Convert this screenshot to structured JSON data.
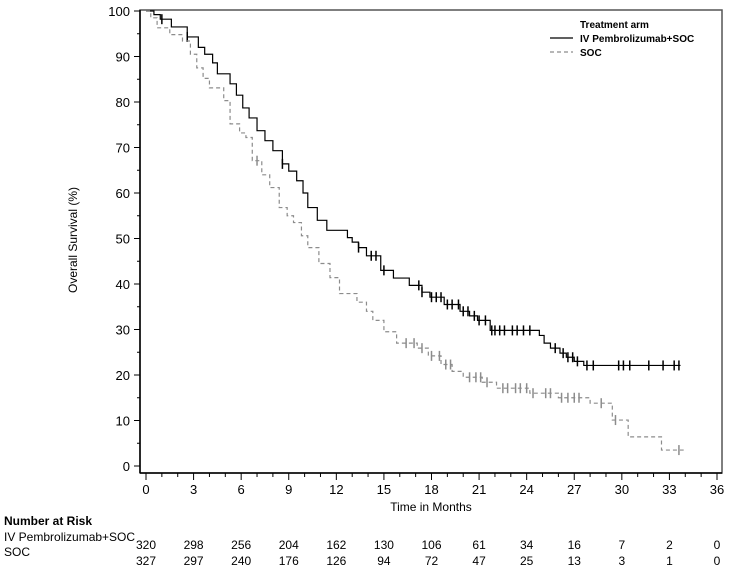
{
  "chart_data": {
    "type": "line",
    "subtype": "kaplan-meier",
    "xlabel": "Time in Months",
    "ylabel": "Overall Survival (%)",
    "xlim": [
      0,
      36
    ],
    "ylim": [
      0,
      100
    ],
    "xticks": [
      0,
      3,
      6,
      9,
      12,
      15,
      18,
      21,
      24,
      27,
      30,
      33,
      36
    ],
    "yticks": [
      0,
      10,
      20,
      30,
      40,
      50,
      60,
      70,
      80,
      90,
      100
    ],
    "grid": false,
    "legend": {
      "title": "Treatment arm",
      "placement": "top-right"
    },
    "series": [
      {
        "name": "IV Pembrolizumab+SOC",
        "color": "#000000",
        "style": "solid",
        "steps": [
          [
            0.5,
            99.2
          ],
          [
            0.9,
            98.2
          ],
          [
            1.6,
            96.5
          ],
          [
            2.6,
            94.3
          ],
          [
            3.3,
            92
          ],
          [
            3.7,
            90.5
          ],
          [
            4.2,
            88.6
          ],
          [
            4.5,
            86.2
          ],
          [
            5.3,
            84
          ],
          [
            5.7,
            81.5
          ],
          [
            6.1,
            78.7
          ],
          [
            6.5,
            76.5
          ],
          [
            7.0,
            73.7
          ],
          [
            7.5,
            71.5
          ],
          [
            8.0,
            69.3
          ],
          [
            8.6,
            66.4
          ],
          [
            9.0,
            64.8
          ],
          [
            9.5,
            62.7
          ],
          [
            9.9,
            60
          ],
          [
            10.2,
            56.8
          ],
          [
            10.8,
            54
          ],
          [
            11.4,
            51.8
          ],
          [
            12.7,
            50.2
          ],
          [
            13.0,
            49.2
          ],
          [
            13.4,
            48.0
          ],
          [
            13.9,
            46.2
          ],
          [
            14.8,
            43.0
          ],
          [
            15.6,
            41.3
          ],
          [
            16.6,
            39.7
          ],
          [
            17.4,
            38.2
          ],
          [
            17.9,
            37.1
          ],
          [
            18.8,
            35.5
          ],
          [
            19.8,
            34.0
          ],
          [
            20.4,
            33.0
          ],
          [
            20.9,
            32.0
          ],
          [
            21.7,
            29.8
          ],
          [
            24.8,
            28.7
          ],
          [
            25.1,
            27
          ],
          [
            25.5,
            25.9
          ],
          [
            26.1,
            24.8
          ],
          [
            26.5,
            23.9
          ],
          [
            27.0,
            23.0
          ],
          [
            27.6,
            22.1
          ]
        ],
        "end": 33.7,
        "censored": [
          1.0,
          2.6,
          8.6,
          13.4,
          14.2,
          14.5,
          15.0,
          17.2,
          17.4,
          18.0,
          18.3,
          18.6,
          19.0,
          19.3,
          19.7,
          20.0,
          20.3,
          20.7,
          21.0,
          21.4,
          21.8,
          22.0,
          22.3,
          22.6,
          23.1,
          23.4,
          23.8,
          24.2,
          25.8,
          26.3,
          26.6,
          26.9,
          27.2,
          27.8,
          28.2,
          29.8,
          30.1,
          30.5,
          31.7,
          32.6,
          33.3,
          33.6
        ]
      },
      {
        "name": "SOC",
        "color": "#8c8c8c",
        "style": "dashed",
        "steps": [
          [
            0.3,
            98.5
          ],
          [
            0.7,
            96.3
          ],
          [
            1.5,
            94.8
          ],
          [
            2.3,
            93.4
          ],
          [
            2.8,
            90.5
          ],
          [
            3.2,
            87.5
          ],
          [
            3.6,
            85.2
          ],
          [
            4.0,
            83.1
          ],
          [
            4.9,
            80.3
          ],
          [
            5.3,
            75.2
          ],
          [
            5.9,
            73.2
          ],
          [
            6.3,
            72.2
          ],
          [
            6.7,
            67.1
          ],
          [
            7.3,
            64
          ],
          [
            7.8,
            61.2
          ],
          [
            8.4,
            56.8
          ],
          [
            8.9,
            55
          ],
          [
            9.3,
            53.5
          ],
          [
            9.8,
            50.6
          ],
          [
            10.2,
            48.0
          ],
          [
            10.9,
            44.5
          ],
          [
            11.6,
            41.4
          ],
          [
            12.2,
            37.9
          ],
          [
            13.3,
            36.0
          ],
          [
            13.9,
            34
          ],
          [
            14.3,
            32.0
          ],
          [
            15.0,
            29.5
          ],
          [
            15.8,
            27.0
          ],
          [
            17.1,
            25.9
          ],
          [
            17.8,
            24.2
          ],
          [
            18.6,
            22.3
          ],
          [
            19.3,
            20.8
          ],
          [
            20.0,
            19.5
          ],
          [
            21.2,
            18.4
          ],
          [
            22.1,
            17.1
          ],
          [
            24.2,
            16.0
          ],
          [
            26.0,
            15.0
          ],
          [
            28.0,
            13.8
          ],
          [
            29.4,
            10.1
          ],
          [
            30.4,
            6.4
          ],
          [
            32.5,
            3.5
          ]
        ],
        "end": 33.9,
        "censored": [
          7.0,
          16.4,
          16.9,
          17.4,
          18.0,
          18.5,
          18.9,
          19.2,
          20.4,
          20.8,
          21.1,
          21.5,
          22.5,
          22.8,
          23.3,
          23.6,
          24.0,
          24.4,
          25.2,
          25.5,
          26.2,
          26.6,
          27.0,
          27.3,
          28.7,
          29.6,
          33.6
        ]
      }
    ],
    "risk_table": {
      "title": "Number at Risk",
      "times": [
        0,
        3,
        6,
        9,
        12,
        15,
        18,
        21,
        24,
        27,
        30,
        33,
        36
      ],
      "rows": [
        {
          "label": "IV Pembrolizumab+SOC",
          "values": [
            320,
            298,
            256,
            204,
            162,
            130,
            106,
            61,
            34,
            16,
            7,
            2,
            0
          ]
        },
        {
          "label": "SOC",
          "values": [
            327,
            297,
            240,
            176,
            126,
            94,
            72,
            47,
            25,
            13,
            3,
            1,
            0
          ]
        }
      ]
    }
  }
}
